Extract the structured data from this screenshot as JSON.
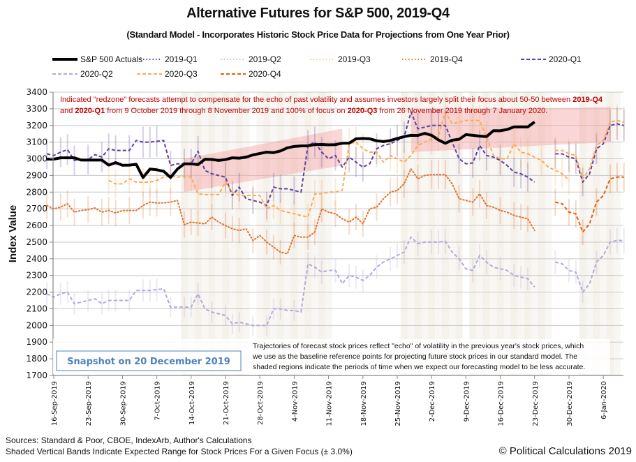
{
  "chart_data": {
    "type": "line",
    "title": "Alternative Futures for S&P 500, 2019-Q4",
    "subtitle": "(Standard Model - Incorporates Historic Stock Price Data for Projections from One Year Prior)",
    "xlabel": "",
    "ylabel": "Index Value",
    "ylim": [
      1700,
      3400
    ],
    "yticks": [
      1700,
      1800,
      1900,
      2000,
      2100,
      2200,
      2300,
      2400,
      2500,
      2600,
      2700,
      2800,
      2900,
      3000,
      3100,
      3200,
      3300,
      3400
    ],
    "xticks": [
      "16-Sep-2019",
      "23-Sep-2019",
      "30-Sep-2019",
      "7-Oct-2019",
      "14-Oct-2019",
      "21-Oct-2019",
      "28-Oct-2019",
      "4-Nov-2019",
      "11-Nov-2019",
      "18-Nov-2019",
      "25-Nov-2019",
      "2-Dec-2019",
      "9-Dec-2019",
      "16-Dec-2019",
      "23-Dec-2019",
      "30-Dec-2019",
      "6-Jan-2020"
    ],
    "x_start": "13-Sep-2019",
    "x_unit": "trading days (5 per weekly tick)",
    "grid": true,
    "legend_position": "top",
    "band_pct": 3.0,
    "series": [
      {
        "name": "S&P 500 Actuals",
        "color": "#000000",
        "style": "solid-thick",
        "start": 0,
        "values": [
          2998,
          2998,
          3006,
          3006,
          3006,
          2992,
          2992,
          2992,
          2992,
          2962,
          2977,
          2961,
          2962,
          2967,
          2888,
          2938,
          2934,
          2925,
          2888,
          2938,
          2970,
          2970,
          2965,
          2997,
          2996,
          2990,
          2995,
          3006,
          3004,
          3010,
          3023,
          3032,
          3040,
          3037,
          3047,
          3066,
          3074,
          3077,
          3078,
          3085,
          3086,
          3084,
          3085,
          3093,
          3094,
          3120,
          3122,
          3120,
          3108,
          3103,
          3110,
          3122,
          3133,
          3141,
          3140,
          3153,
          3141,
          3113,
          3093,
          3112,
          3117,
          3145,
          3141,
          3136,
          3133,
          3169,
          3168,
          3176,
          3191,
          3192,
          3191,
          3221
        ]
      },
      {
        "name": "2019-Q1",
        "color": "#5f3f9f",
        "style": "dotted",
        "start": 0,
        "values": []
      },
      {
        "name": "2019-Q2",
        "color": "#c8c0e0",
        "style": "dotted",
        "start": 0,
        "values": []
      },
      {
        "name": "2019-Q3",
        "color": "#fcc98a",
        "style": "dotted",
        "start": 0,
        "values": []
      },
      {
        "name": "2019-Q4",
        "color": "#e3722b",
        "style": "dotted",
        "start": 0,
        "values": [
          2720,
          2700,
          2710,
          2730,
          2680,
          2690,
          2695,
          2705,
          2680,
          2690,
          2675,
          2690,
          2690,
          2690,
          2720,
          2740,
          2735,
          2735,
          2740,
          2750,
          2605,
          2620,
          2615,
          2610,
          2650,
          2620,
          2600,
          2580,
          2570,
          2580,
          2510,
          2540,
          2500,
          2470,
          2440,
          2430,
          2540,
          2530,
          2530,
          2560,
          2700,
          2680,
          2670,
          2640,
          2620,
          2650,
          2610,
          2700,
          2710,
          2760,
          2800,
          2810,
          2850,
          2940,
          2880,
          2900,
          2905,
          2905,
          2905,
          2850,
          2760,
          2750,
          2740,
          2790,
          2720,
          2710,
          2690,
          2680,
          2660,
          2650,
          2640,
          2570
        ]
      },
      {
        "name": "2020-Q1",
        "color": "#5f3f9f",
        "style": "dashed",
        "start": 0,
        "values": [
          3030,
          3020,
          3040,
          3055,
          2990,
          2995,
          2995,
          3025,
          3010,
          3060,
          3050,
          3050,
          3050,
          3110,
          3100,
          3100,
          3105,
          3110,
          2960,
          2970,
          2970,
          2970,
          3045,
          2930,
          2910,
          2900,
          2890,
          2780,
          2830,
          2760,
          2750,
          2740,
          2720,
          2830,
          2820,
          2820,
          2810,
          2800,
          3080,
          3100,
          3040,
          3000,
          3020,
          2950,
          3010,
          2980,
          2950,
          2970,
          3060,
          3080,
          3090,
          3110,
          3130,
          3280,
          3180,
          3190,
          3200,
          3200,
          3200,
          3100,
          3000,
          2970,
          2975,
          3080,
          3020,
          3010,
          2990,
          2960,
          2920,
          2910,
          2890,
          2860
        ]
      },
      {
        "name": "2020-Q2",
        "color": "#b3aad8",
        "style": "dashed",
        "start": 0,
        "values": [
          2190,
          2170,
          2190,
          2200,
          2130,
          2140,
          2150,
          2160,
          2130,
          2150,
          2150,
          2150,
          2150,
          2210,
          2210,
          2210,
          2215,
          2220,
          2110,
          2110,
          2110,
          2110,
          2190,
          2100,
          2080,
          2070,
          2060,
          2010,
          2020,
          2010,
          2000,
          2000,
          2000,
          2100,
          2100,
          2090,
          2090,
          2080,
          2370,
          2350,
          2320,
          2330,
          2330,
          2250,
          2300,
          2290,
          2270,
          2300,
          2350,
          2380,
          2400,
          2420,
          2440,
          2530,
          2490,
          2500,
          2500,
          2500,
          2505,
          2440,
          2400,
          2340,
          2330,
          2420,
          2380,
          2350,
          2340,
          2330,
          2300,
          2290,
          2280,
          2230
        ]
      },
      {
        "name": "2020-Q3",
        "color": "#fdaa55",
        "style": "dashed",
        "start": 9,
        "values": [
          2870,
          2850,
          2850,
          2880,
          2860,
          2860,
          2860,
          2870,
          2890,
          2895,
          2890,
          2895,
          2890,
          2790,
          2785,
          2785,
          2785,
          2860,
          2800,
          2780,
          2780,
          2780,
          2780,
          2700,
          2720,
          2690,
          2680,
          2670,
          2660,
          2650,
          2790,
          2790,
          2800,
          2800,
          2810,
          3090,
          3100,
          3060,
          3040,
          3040,
          2980,
          3020,
          3000,
          2980,
          3020,
          3080,
          3100,
          3120,
          3140,
          3280,
          3210,
          3220,
          3230,
          3230,
          3230,
          3130,
          3020,
          3000,
          3000,
          3090,
          3040,
          3030,
          3010,
          2990,
          2950,
          2930,
          2910,
          2870
        ]
      },
      {
        "name": "2020-Q4",
        "color": "#e06010",
        "style": "dashed",
        "start": 0,
        "values": []
      }
    ],
    "projections_after_actuals": {
      "2020-Q1": [
        3030,
        3030,
        3010,
        3000,
        2860,
        2910,
        3060,
        3090,
        3200,
        3210,
        3200
      ],
      "2020-Q2": [
        2380,
        2370,
        2330,
        2320,
        2200,
        2250,
        2380,
        2420,
        2500,
        2510,
        2510
      ],
      "2020-Q3": [
        3050,
        3050,
        3030,
        3020,
        2880,
        2940,
        3080,
        3110,
        3220,
        3230,
        3220
      ],
      "2020-Q4": [
        2740,
        2730,
        2680,
        2670,
        2560,
        2610,
        2740,
        2780,
        2880,
        2890,
        2890
      ]
    },
    "redzones": [
      {
        "label": "50-50 focus 2019-Q4 / 2020-Q1",
        "from_index": 20,
        "to_index": 43,
        "start_range": [
          2800,
          3000
        ],
        "end_range": [
          2960,
          3180
        ]
      },
      {
        "label": "100% focus 2020-Q3",
        "from_index": 53,
        "to_index": 82,
        "start_range": [
          3040,
          3290
        ],
        "end_range": [
          3100,
          3310
        ]
      }
    ],
    "shaded_periods": [
      [
        20,
        29
      ],
      [
        31,
        41
      ],
      [
        52,
        60
      ],
      [
        62,
        73
      ],
      [
        78,
        83
      ]
    ],
    "legend": [
      "S&P 500 Actuals",
      "2019-Q1",
      "2019-Q2",
      "2019-Q3",
      "2019-Q4",
      "2020-Q1",
      "2020-Q2",
      "2020-Q3",
      "2020-Q4"
    ]
  },
  "annotations": {
    "redzone_note_line1_a": "Indicated \"redzone\" forecasts attempt to compensate for the echo of past volatility and assumes investors largely split their focus about 50-50 between ",
    "redzone_note_line1_b": "2019-Q4",
    "redzone_note_line2_a": "and ",
    "redzone_note_line2_b": "2020-Q1",
    "redzone_note_line2_c": " from 9 October 2019 through 8 November 2019 and 100% of focus on ",
    "redzone_note_line2_d": "2020-Q3",
    "redzone_note_line2_e": " from 26 November 2019 through 7 January 2020.",
    "echo_note_line1": "Trajectories of forecast stock prices reflect \"echo\" of volatility in  the previous year's stock prices, which",
    "echo_note_line2": "we use as the baseline reference points for projecting future stock prices in our standard model.   The",
    "echo_note_line3": "shaded regions indicate the periods of time when we expect our forecasting model to be less accurate.",
    "snapshot": "Snapshot on 20 December  2019"
  },
  "footer": {
    "sources": "Sources: Standard & Poor, CBOE, IndexArb, Author's Calculations",
    "bands_note": "Shaded Vertical Bands Indicate Expected Range for Stock Prices For a Given Focus (± 3.0%)",
    "copyright": "© Political Calculations 2019"
  }
}
